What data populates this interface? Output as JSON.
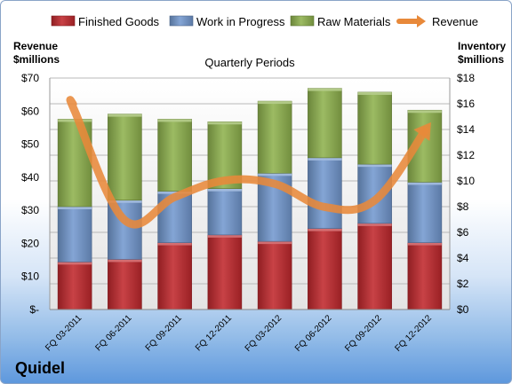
{
  "chart_data": {
    "type": "bar",
    "title": "Quarterly Periods",
    "left_axis_title": [
      "Revenue",
      "$millions"
    ],
    "right_axis_title": [
      "Inventory",
      "$millions"
    ],
    "left_ticks": [
      "$-",
      "$10",
      "$20",
      "$30",
      "$40",
      "$50",
      "$60",
      "$70"
    ],
    "right_ticks": [
      "$0",
      "$2",
      "$4",
      "$6",
      "$8",
      "$10",
      "$12",
      "$14",
      "$16",
      "$18"
    ],
    "left_ylim": [
      0,
      70
    ],
    "right_ylim": [
      0,
      18
    ],
    "categories": [
      "FQ 03-2011",
      "FQ 06-2011",
      "FQ 09-2011",
      "FQ 12-2011",
      "FQ 03-2012",
      "FQ 06-2012",
      "FQ 09-2012",
      "FQ 12-2012"
    ],
    "stacked": true,
    "series": [
      {
        "name": "Finished Goods",
        "axis": "right",
        "color": "#c0282d",
        "values": [
          3.7,
          3.9,
          5.2,
          5.8,
          5.3,
          6.3,
          6.7,
          5.2
        ]
      },
      {
        "name": "Work in Progress",
        "axis": "right",
        "color": "#7399cf",
        "values": [
          4.3,
          4.6,
          4.0,
          3.6,
          5.3,
          5.5,
          4.6,
          4.7
        ]
      },
      {
        "name": "Raw Materials",
        "axis": "right",
        "color": "#8fb24e",
        "values": [
          6.8,
          6.7,
          5.6,
          5.2,
          5.6,
          5.4,
          5.6,
          5.6
        ]
      },
      {
        "name": "Revenue",
        "axis": "left",
        "type": "line",
        "color": "#e8893a",
        "values": [
          60,
          27,
          34,
          39,
          38,
          31,
          33,
          54
        ]
      }
    ],
    "grid": true,
    "legend_position": "top"
  },
  "company": "Quidel"
}
